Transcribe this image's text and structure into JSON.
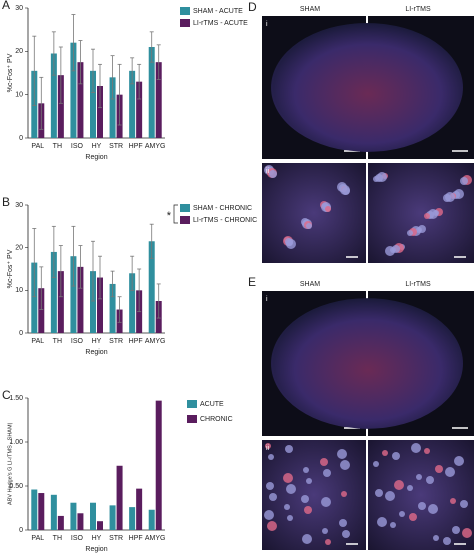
{
  "chart_data": [
    {
      "type": "bar",
      "panel": "A",
      "y_label": "%c-Fos⁺ PV",
      "x_label": "Region",
      "categories": [
        "PAL",
        "TH",
        "ISO",
        "HY",
        "STR",
        "HPF",
        "AMYG"
      ],
      "series": [
        {
          "name": "SHAM - ACUTE",
          "color": "#2f8f9e",
          "values": [
            15.5,
            19.5,
            22,
            15.5,
            14,
            15.5,
            21
          ],
          "errors": [
            8,
            5,
            6.5,
            5,
            5,
            3,
            3.5
          ]
        },
        {
          "name": "LI-rTMS - ACUTE",
          "color": "#5a1d5e",
          "values": [
            8,
            14.5,
            17.5,
            12,
            10,
            13,
            17.5
          ],
          "errors": [
            6,
            6.5,
            5,
            5,
            7,
            4,
            4
          ]
        }
      ],
      "ylim": [
        0,
        30
      ],
      "yticks": [
        0,
        10,
        20,
        30
      ],
      "legend": "upper right"
    },
    {
      "type": "bar",
      "panel": "B",
      "y_label": "%c-Fos⁺ PV",
      "x_label": "Region",
      "annotation": "*",
      "categories": [
        "PAL",
        "TH",
        "ISO",
        "HY",
        "STR",
        "HPF",
        "AMYG"
      ],
      "series": [
        {
          "name": "SHAM - CHRONIC",
          "color": "#2f8f9e",
          "values": [
            16.5,
            19,
            18,
            14.5,
            11.5,
            14,
            21.5
          ],
          "errors": [
            8,
            6,
            7,
            7,
            3,
            4,
            4
          ]
        },
        {
          "name": "LI-rTMS - CHRONIC",
          "color": "#5a1d5e",
          "values": [
            10.5,
            14.5,
            15.5,
            13,
            5.5,
            10,
            7.5
          ],
          "errors": [
            5,
            6,
            5,
            5,
            3,
            5,
            4
          ]
        }
      ],
      "ylim": [
        0,
        30
      ],
      "yticks": [
        0,
        10,
        20,
        30
      ],
      "legend": "upper right"
    },
    {
      "type": "bar",
      "panel": "C",
      "y_label": "ABV Hedge's G LI-rTMS - SHAM|",
      "x_label": "Region",
      "categories": [
        "PAL",
        "TH",
        "ISO",
        "HY",
        "STR",
        "HPF",
        "AMYG"
      ],
      "series": [
        {
          "name": "ACUTE",
          "color": "#2f8f9e",
          "values": [
            0.46,
            0.4,
            0.31,
            0.31,
            0.28,
            0.26,
            0.23
          ]
        },
        {
          "name": "CHRONIC",
          "color": "#5a1d5e",
          "values": [
            0.42,
            0.16,
            0.19,
            0.1,
            0.73,
            0.47,
            1.47
          ]
        }
      ],
      "ylim": [
        0,
        1.5
      ],
      "yticks": [
        0,
        {
          "value": 0.5,
          "label": "0.50"
        },
        {
          "value": 1,
          "label": "1.00"
        },
        {
          "value": 1.5,
          "label": "1.50"
        }
      ],
      "legend": "right"
    }
  ],
  "image_panels": [
    {
      "panel": "D",
      "columns": [
        "SHAM",
        "LI-rTMS"
      ],
      "rows": [
        "i",
        "ii"
      ]
    },
    {
      "panel": "E",
      "columns": [
        "SHAM",
        "LI-rTMS"
      ],
      "rows": [
        "i",
        "ii"
      ]
    }
  ]
}
